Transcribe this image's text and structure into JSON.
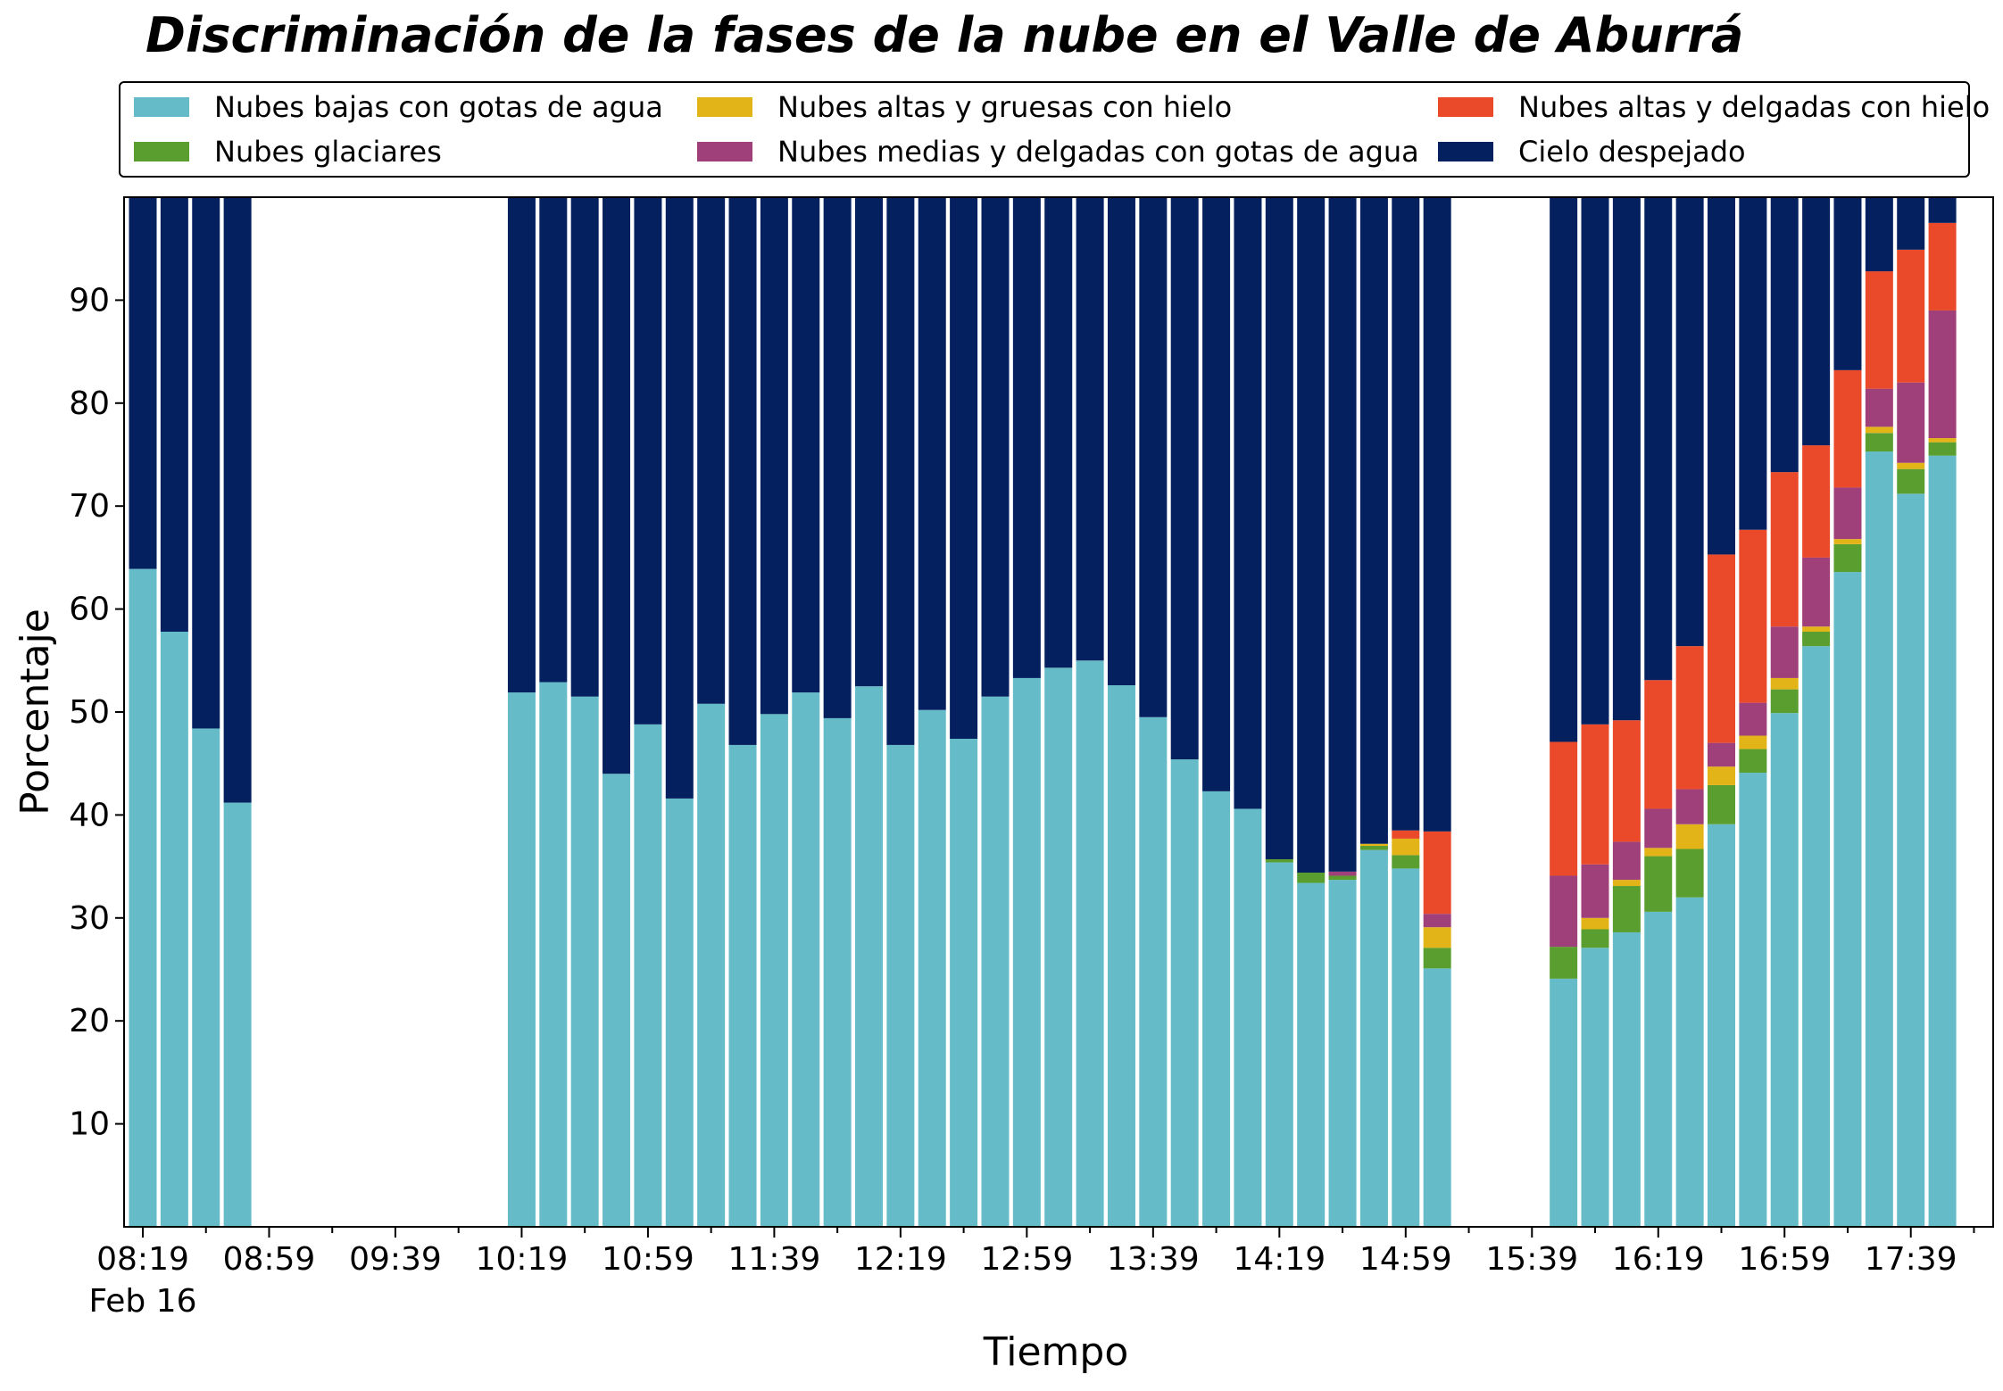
{
  "chart_data": {
    "type": "bar",
    "stacked": true,
    "title": "Discriminación de la fases de la nube en el Valle de Aburrá",
    "xlabel": "Tiempo",
    "ylabel": "Porcentaje",
    "ylim": [
      0,
      100
    ],
    "yticks": [
      10,
      20,
      30,
      40,
      50,
      60,
      70,
      80,
      90
    ],
    "grid": false,
    "legend_placement": "top, above plot, 3 columns",
    "x_tick_labels": [
      "08:19",
      "08:59",
      "09:39",
      "10:19",
      "10:59",
      "11:39",
      "12:19",
      "12:59",
      "13:39",
      "14:19",
      "14:59",
      "15:39",
      "16:19",
      "16:59",
      "17:39"
    ],
    "x_date_label": "Feb 16",
    "x": [
      "08:19",
      "08:29",
      "08:39",
      "08:49",
      "08:59",
      "09:09",
      "09:19",
      "09:29",
      "09:39",
      "09:49",
      "09:59",
      "10:09",
      "10:19",
      "10:29",
      "10:39",
      "10:49",
      "10:59",
      "11:09",
      "11:19",
      "11:29",
      "11:39",
      "11:49",
      "11:59",
      "12:09",
      "12:19",
      "12:29",
      "12:39",
      "12:49",
      "12:59",
      "13:09",
      "13:19",
      "13:29",
      "13:39",
      "13:49",
      "13:59",
      "14:09",
      "14:19",
      "14:29",
      "14:39",
      "14:49",
      "14:59",
      "15:09",
      "15:19",
      "15:29",
      "15:39",
      "15:49",
      "15:59",
      "16:09",
      "16:19",
      "16:29",
      "16:39",
      "16:49",
      "16:59",
      "17:09",
      "17:19",
      "17:29",
      "17:39",
      "17:49"
    ],
    "series": [
      {
        "name": "Nubes bajas con gotas de agua",
        "color": "#65BCC8",
        "values": [
          63.9,
          57.8,
          48.4,
          41.2,
          null,
          null,
          null,
          null,
          null,
          null,
          null,
          null,
          51.9,
          52.9,
          51.5,
          44.0,
          48.8,
          41.6,
          50.8,
          46.8,
          49.8,
          51.9,
          49.4,
          52.5,
          46.8,
          50.2,
          47.4,
          51.5,
          53.3,
          54.3,
          55.0,
          52.6,
          49.5,
          45.4,
          42.3,
          40.6,
          35.4,
          33.4,
          33.7,
          36.6,
          34.8,
          25.1,
          null,
          null,
          null,
          24.1,
          27.1,
          28.6,
          30.6,
          32.0,
          39.1,
          44.1,
          49.9,
          56.4,
          63.6,
          75.3,
          71.2,
          74.9
        ]
      },
      {
        "name": "Nubes glaciares",
        "color": "#5A9E2F",
        "values": [
          0,
          0,
          0,
          0,
          null,
          null,
          null,
          null,
          null,
          null,
          null,
          null,
          0,
          0,
          0,
          0,
          0,
          0,
          0,
          0,
          0,
          0,
          0,
          0,
          0,
          0,
          0,
          0,
          0,
          0,
          0,
          0,
          0,
          0,
          0,
          0,
          0.3,
          1.0,
          0.4,
          0.4,
          1.3,
          2.0,
          null,
          null,
          null,
          3.1,
          1.8,
          4.5,
          5.4,
          4.7,
          3.8,
          2.3,
          2.3,
          1.4,
          2.7,
          1.8,
          2.4,
          1.3
        ]
      },
      {
        "name": "Nubes altas y gruesas con hielo",
        "color": "#E3B417",
        "values": [
          0,
          0,
          0,
          0,
          null,
          null,
          null,
          null,
          null,
          null,
          null,
          null,
          0,
          0,
          0,
          0,
          0,
          0,
          0,
          0,
          0,
          0,
          0,
          0,
          0,
          0,
          0,
          0,
          0,
          0,
          0,
          0,
          0,
          0,
          0,
          0,
          0,
          0,
          0,
          0.2,
          1.6,
          2.0,
          null,
          null,
          null,
          0,
          1.1,
          0.6,
          0.8,
          2.4,
          1.8,
          1.3,
          1.1,
          0.5,
          0.5,
          0.6,
          0.6,
          0.4
        ]
      },
      {
        "name": "Nubes medias y delgadas con gotas de agua",
        "color": "#A0407A",
        "values": [
          0,
          0,
          0,
          0,
          null,
          null,
          null,
          null,
          null,
          null,
          null,
          null,
          0,
          0,
          0,
          0,
          0,
          0,
          0,
          0,
          0,
          0,
          0,
          0,
          0,
          0,
          0,
          0,
          0,
          0,
          0,
          0,
          0,
          0,
          0,
          0,
          0,
          0,
          0.4,
          0,
          0,
          1.3,
          null,
          null,
          null,
          6.9,
          5.2,
          3.7,
          3.8,
          3.4,
          2.3,
          3.2,
          5.0,
          6.7,
          5.0,
          3.7,
          7.8,
          12.4
        ]
      },
      {
        "name": "Nubes altas y delgadas con hielo",
        "color": "#EA4A2A",
        "values": [
          0,
          0,
          0,
          0,
          null,
          null,
          null,
          null,
          null,
          null,
          null,
          null,
          0,
          0,
          0,
          0,
          0,
          0,
          0,
          0,
          0,
          0,
          0,
          0,
          0,
          0,
          0,
          0,
          0,
          0,
          0,
          0,
          0,
          0,
          0,
          0,
          0,
          0,
          0,
          0,
          0.8,
          8.0,
          null,
          null,
          null,
          13.0,
          13.6,
          11.8,
          12.5,
          13.9,
          18.3,
          16.8,
          15.0,
          10.9,
          11.4,
          11.4,
          12.9,
          8.5
        ]
      },
      {
        "name": "Cielo despejado",
        "color": "#04205F",
        "values": [
          36.1,
          42.2,
          51.6,
          58.8,
          null,
          null,
          null,
          null,
          null,
          null,
          null,
          null,
          48.1,
          47.1,
          48.5,
          56.0,
          51.2,
          58.4,
          49.2,
          53.2,
          50.2,
          48.1,
          50.6,
          47.5,
          53.2,
          49.8,
          52.6,
          48.5,
          46.7,
          45.7,
          45.0,
          47.4,
          50.5,
          54.6,
          57.7,
          59.4,
          64.3,
          65.6,
          65.5,
          62.8,
          61.5,
          61.6,
          null,
          null,
          null,
          52.9,
          51.2,
          50.8,
          46.9,
          43.6,
          34.7,
          32.3,
          26.7,
          24.1,
          16.8,
          7.2,
          5.1,
          2.5
        ]
      }
    ]
  },
  "legend": {
    "items": [
      {
        "label": "Nubes bajas con gotas de agua",
        "color": "#65BCC8"
      },
      {
        "label": "Nubes glaciares",
        "color": "#5A9E2F"
      },
      {
        "label": "Nubes altas y gruesas con hielo",
        "color": "#E3B417"
      },
      {
        "label": "Nubes medias y delgadas con gotas de agua",
        "color": "#A0407A"
      },
      {
        "label": "Nubes altas y delgadas con hielo",
        "color": "#EA4A2A"
      },
      {
        "label": "Cielo despejado",
        "color": "#04205F"
      }
    ]
  }
}
